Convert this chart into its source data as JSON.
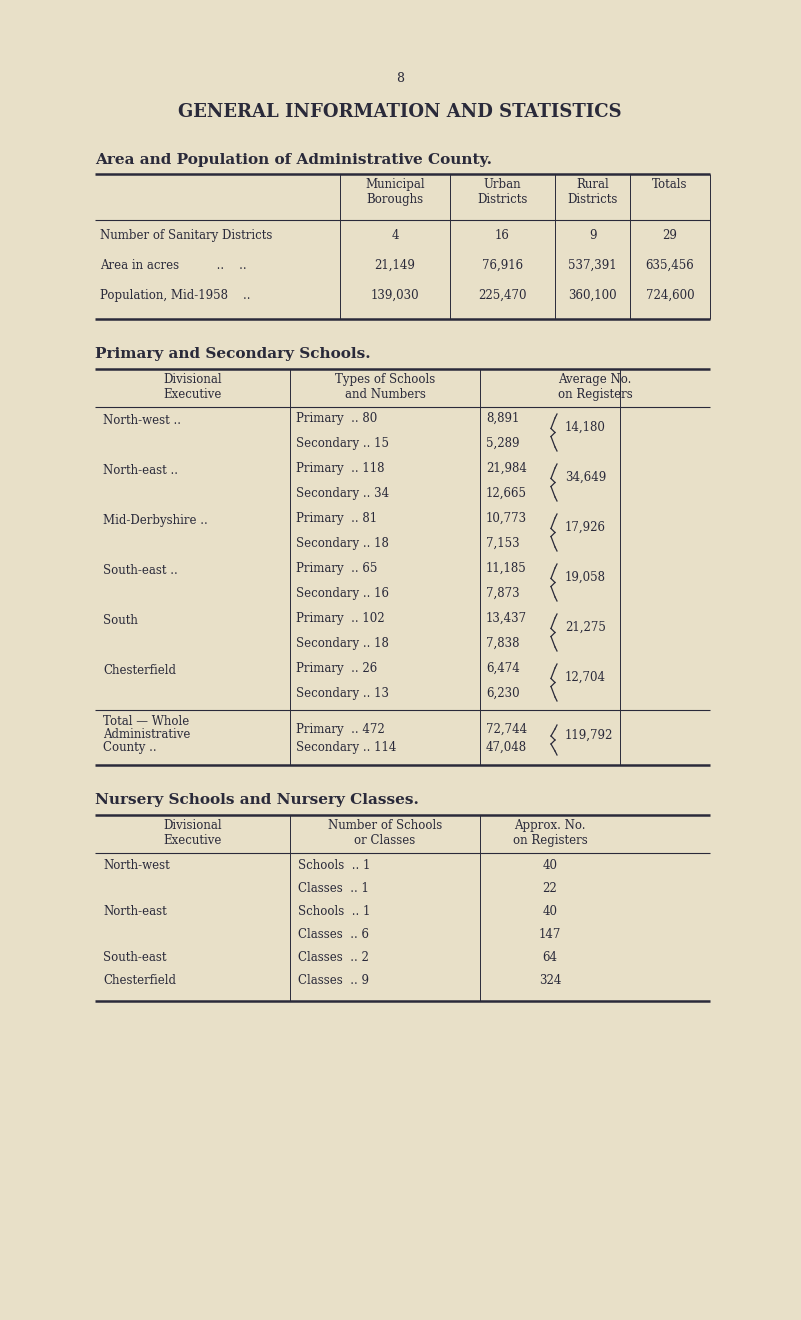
{
  "bg_color": "#e8e0c8",
  "text_color": "#2a2a3a",
  "page_number": "8",
  "main_title": "GENERAL INFORMATION AND STATISTICS",
  "section1_title": "Area and Population of Administrative County.",
  "table1_rows": [
    [
      "Number of Sanitary Districts",
      "4",
      "16",
      "9",
      "29"
    ],
    [
      "Area in acres          ..    ..",
      "21,149",
      "76,916",
      "537,391",
      "635,456"
    ],
    [
      "Population, Mid-1958    ..",
      "139,030",
      "225,470",
      "360,100",
      "724,600"
    ]
  ],
  "section2_title": "Primary and Secondary Schools.",
  "divisions": [
    [
      "North-west ..",
      "Primary  .. 80",
      "8,891",
      "Secondary .. 15",
      "5,289",
      "14,180"
    ],
    [
      "North-east ..",
      "Primary  .. 118",
      "21,984",
      "Secondary .. 34",
      "12,665",
      "34,649"
    ],
    [
      "Mid-Derbyshire ..",
      "Primary  .. 81",
      "10,773",
      "Secondary .. 18",
      "7,153",
      "17,926"
    ],
    [
      "South-east ..",
      "Primary  .. 65",
      "11,185",
      "Secondary .. 16",
      "7,873",
      "19,058"
    ],
    [
      "South",
      "Primary  .. 102",
      "13,437",
      "Secondary .. 18",
      "7,838",
      "21,275"
    ],
    [
      "Chesterfield",
      "Primary  .. 26",
      "6,474",
      "Secondary .. 13",
      "6,230",
      "12,704"
    ]
  ],
  "section3_title": "Nursery Schools and Nursery Classes.",
  "nursery_rows": [
    [
      "North-west",
      "Schools  .. 1",
      "40"
    ],
    [
      "",
      "Classes  .. 1",
      "22"
    ],
    [
      "North-east",
      "Schools  .. 1",
      "40"
    ],
    [
      "",
      "Classes  .. 6",
      "147"
    ],
    [
      "South-east",
      "Classes  .. 2",
      "64"
    ],
    [
      "Chesterfield",
      "Classes  .. 9",
      "324"
    ]
  ]
}
